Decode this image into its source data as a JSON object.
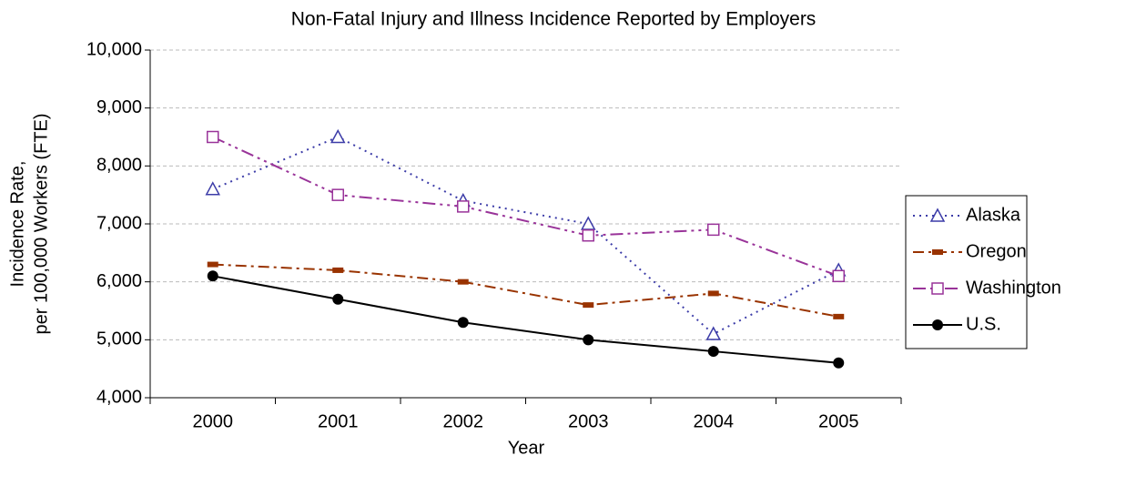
{
  "chart_data": {
    "type": "line",
    "title": "Non-Fatal Injury and Illness Incidence Reported by Employers",
    "xlabel": "Year",
    "ylabel": [
      "Incidence Rate,",
      "per 100,000 Workers (FTE)"
    ],
    "categories": [
      "2000",
      "2001",
      "2002",
      "2003",
      "2004",
      "2005"
    ],
    "series": [
      {
        "name": "Alaska",
        "color": "#3c3ca8",
        "values": [
          7600,
          8500,
          7400,
          7000,
          5100,
          6200
        ]
      },
      {
        "name": "Oregon",
        "color": "#993300",
        "values": [
          6300,
          6200,
          6000,
          5600,
          5800,
          5400
        ]
      },
      {
        "name": "Washington",
        "color": "#993399",
        "values": [
          8500,
          7500,
          7300,
          6800,
          6900,
          6100
        ]
      },
      {
        "name": "U.S.",
        "color": "#000000",
        "values": [
          6100,
          5700,
          5300,
          5000,
          4800,
          4600
        ]
      }
    ],
    "ylim": [
      4000,
      10000
    ],
    "yticks": [
      {
        "value": 4000,
        "label": "4,000"
      },
      {
        "value": 5000,
        "label": "5,000"
      },
      {
        "value": 6000,
        "label": "6,000"
      },
      {
        "value": 7000,
        "label": "7,000"
      },
      {
        "value": 8000,
        "label": "8,000"
      },
      {
        "value": 9000,
        "label": "9,000"
      },
      {
        "value": 10000,
        "label": "10,000"
      }
    ],
    "grid": true,
    "legend": "right"
  }
}
